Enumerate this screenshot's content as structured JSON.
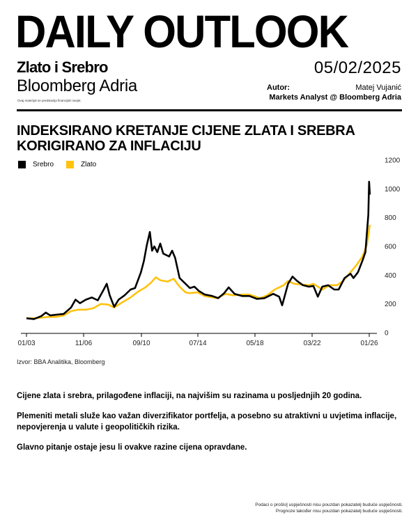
{
  "header": {
    "title": "DAILY OUTLOOK",
    "subtitle": "Zlato i Srebro",
    "brand": "Bloomberg Adria",
    "disclaimer": "Ovaj materijal ne predstavlja financijski savjet.",
    "date": "05/02/2025",
    "author_label": "Autor:",
    "author_name": "Matej Vujanić",
    "author_role": "Markets Analyst @ Bloomberg Adria"
  },
  "chart_title": "INDEKSIRANO KRETANJE CIJENE ZLATA I SREBRA KORIGIRANO ZA INFLACIJU",
  "colors": {
    "srebro": "#000000",
    "zlato": "#FFC20E"
  },
  "chart_data": {
    "type": "line",
    "title": "INDEKSIRANO KRETANJE CIJENE ZLATA I SREBRA KORIGIRANO ZA INFLACIJU",
    "xlabel": "",
    "ylabel": "",
    "x_ticks": [
      "01/03",
      "11/06",
      "09/10",
      "07/14",
      "05/18",
      "03/22",
      "01/26"
    ],
    "x_range": [
      2003.0,
      2026.2
    ],
    "ylim": [
      0,
      1200
    ],
    "y_ticks": [
      0,
      200,
      400,
      600,
      800,
      1000,
      1200
    ],
    "y_axis_side": "right",
    "grid": false,
    "legend_position": "top-left",
    "series": [
      {
        "name": "Srebro",
        "color": "#000000",
        "points": [
          [
            2003.0,
            100
          ],
          [
            2003.5,
            95
          ],
          [
            2004.0,
            115
          ],
          [
            2004.3,
            140
          ],
          [
            2004.6,
            120
          ],
          [
            2005.0,
            125
          ],
          [
            2005.5,
            130
          ],
          [
            2006.0,
            175
          ],
          [
            2006.3,
            230
          ],
          [
            2006.6,
            205
          ],
          [
            2007.0,
            230
          ],
          [
            2007.4,
            245
          ],
          [
            2007.8,
            225
          ],
          [
            2008.2,
            300
          ],
          [
            2008.4,
            340
          ],
          [
            2008.6,
            260
          ],
          [
            2008.9,
            180
          ],
          [
            2009.2,
            230
          ],
          [
            2009.6,
            260
          ],
          [
            2010.0,
            300
          ],
          [
            2010.3,
            310
          ],
          [
            2010.7,
            420
          ],
          [
            2010.9,
            500
          ],
          [
            2011.1,
            610
          ],
          [
            2011.3,
            700
          ],
          [
            2011.45,
            570
          ],
          [
            2011.6,
            600
          ],
          [
            2011.8,
            560
          ],
          [
            2012.0,
            620
          ],
          [
            2012.2,
            550
          ],
          [
            2012.6,
            530
          ],
          [
            2012.8,
            570
          ],
          [
            2013.0,
            520
          ],
          [
            2013.3,
            380
          ],
          [
            2013.6,
            350
          ],
          [
            2014.0,
            310
          ],
          [
            2014.3,
            320
          ],
          [
            2014.6,
            290
          ],
          [
            2015.0,
            265
          ],
          [
            2015.5,
            255
          ],
          [
            2015.9,
            240
          ],
          [
            2016.3,
            275
          ],
          [
            2016.6,
            315
          ],
          [
            2017.0,
            270
          ],
          [
            2017.5,
            255
          ],
          [
            2018.0,
            255
          ],
          [
            2018.5,
            235
          ],
          [
            2019.0,
            240
          ],
          [
            2019.6,
            270
          ],
          [
            2020.0,
            250
          ],
          [
            2020.2,
            190
          ],
          [
            2020.6,
            340
          ],
          [
            2020.9,
            390
          ],
          [
            2021.2,
            360
          ],
          [
            2021.6,
            330
          ],
          [
            2022.0,
            320
          ],
          [
            2022.3,
            325
          ],
          [
            2022.6,
            250
          ],
          [
            2022.9,
            320
          ],
          [
            2023.3,
            330
          ],
          [
            2023.7,
            300
          ],
          [
            2024.0,
            300
          ],
          [
            2024.4,
            380
          ],
          [
            2024.8,
            410
          ],
          [
            2025.0,
            380
          ],
          [
            2025.3,
            420
          ],
          [
            2025.6,
            500
          ],
          [
            2025.8,
            560
          ],
          [
            2025.9,
            690
          ],
          [
            2026.0,
            820
          ],
          [
            2026.05,
            1050
          ],
          [
            2026.1,
            960
          ]
        ]
      },
      {
        "name": "Zlato",
        "color": "#FFC20E",
        "points": [
          [
            2003.0,
            100
          ],
          [
            2003.5,
            100
          ],
          [
            2004.0,
            105
          ],
          [
            2004.5,
            110
          ],
          [
            2005.0,
            110
          ],
          [
            2005.5,
            120
          ],
          [
            2006.0,
            150
          ],
          [
            2006.5,
            160
          ],
          [
            2007.0,
            160
          ],
          [
            2007.5,
            170
          ],
          [
            2008.0,
            200
          ],
          [
            2008.5,
            195
          ],
          [
            2008.9,
            175
          ],
          [
            2009.5,
            215
          ],
          [
            2010.0,
            245
          ],
          [
            2010.5,
            285
          ],
          [
            2011.0,
            315
          ],
          [
            2011.4,
            350
          ],
          [
            2011.7,
            385
          ],
          [
            2012.0,
            365
          ],
          [
            2012.5,
            355
          ],
          [
            2012.9,
            375
          ],
          [
            2013.3,
            320
          ],
          [
            2013.7,
            280
          ],
          [
            2014.0,
            275
          ],
          [
            2014.5,
            280
          ],
          [
            2015.0,
            255
          ],
          [
            2015.8,
            240
          ],
          [
            2016.4,
            270
          ],
          [
            2016.9,
            260
          ],
          [
            2017.5,
            265
          ],
          [
            2018.0,
            265
          ],
          [
            2018.7,
            240
          ],
          [
            2019.2,
            260
          ],
          [
            2019.7,
            300
          ],
          [
            2020.3,
            330
          ],
          [
            2020.6,
            360
          ],
          [
            2021.0,
            340
          ],
          [
            2021.5,
            335
          ],
          [
            2022.0,
            330
          ],
          [
            2022.3,
            340
          ],
          [
            2022.9,
            300
          ],
          [
            2023.4,
            330
          ],
          [
            2023.9,
            330
          ],
          [
            2024.3,
            360
          ],
          [
            2024.8,
            420
          ],
          [
            2025.2,
            470
          ],
          [
            2025.6,
            530
          ],
          [
            2025.9,
            610
          ],
          [
            2026.1,
            750
          ]
        ]
      }
    ]
  },
  "source": "Izvor: BBA Analitika, Bloomberg",
  "paragraphs": [
    "Cijene zlata i srebra, prilagođene inflaciji, na najvišim su razinama u posljednjih  20 godina.",
    "Plemeniti metali služe kao važan diverzifikator portfelja, a posebno su atraktivni u uvjetima inflacije, nepovjerenja u valute i geopolitičkih rizika.",
    "Glavno pitanje ostaje jesu li ovakve razine cijena opravdane."
  ],
  "footnote": {
    "line1": "Podaci o prošlo] uspješnosti nisu pouzdan pokazatelj buduće uspješnosti.",
    "line2": "Prognoze također nisu pouzdan pokazatelj buduće uspješnosti."
  }
}
